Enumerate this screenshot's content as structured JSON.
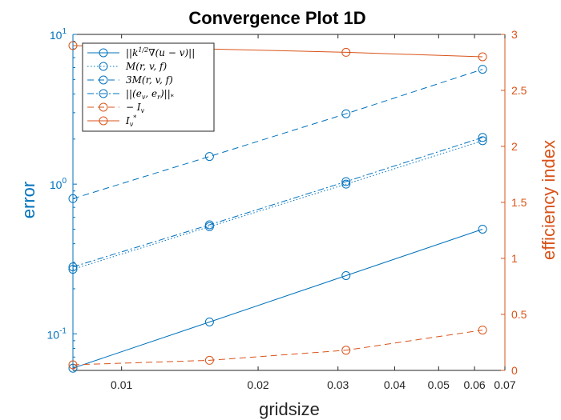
{
  "chart_data": {
    "type": "line",
    "title": "Convergence Plot 1D",
    "xlabel": "gridsize",
    "ylabel_left": "error",
    "ylabel_right": "efficiency index",
    "xscale": "log",
    "yscale_left": "log",
    "yscale_right": "linear",
    "xlim": [
      0.0078125,
      0.07
    ],
    "ylim_left": [
      0.057,
      10
    ],
    "ylim_right": [
      0,
      3
    ],
    "x": [
      0.0078125,
      0.015625,
      0.03125,
      0.0625
    ],
    "xticks": [
      {
        "value": 0.01,
        "label": "0.01"
      },
      {
        "value": 0.02,
        "label": "0.02"
      },
      {
        "value": 0.03,
        "label": "0.03"
      },
      {
        "value": 0.04,
        "label": "0.04"
      },
      {
        "value": 0.05,
        "label": "0.05"
      },
      {
        "value": 0.06,
        "label": "0.06"
      },
      {
        "value": 0.07,
        "label": "0.07"
      }
    ],
    "yticks_left": [
      {
        "value": 0.1,
        "base": "10",
        "exp": "-1"
      },
      {
        "value": 1,
        "base": "10",
        "exp": "0"
      },
      {
        "value": 10,
        "base": "10",
        "exp": "1"
      }
    ],
    "yticks_right": [
      {
        "value": 0,
        "label": "0"
      },
      {
        "value": 0.5,
        "label": "0.5"
      },
      {
        "value": 1,
        "label": "1"
      },
      {
        "value": 1.5,
        "label": "1.5"
      },
      {
        "value": 2,
        "label": "2"
      },
      {
        "value": 2.5,
        "label": "2.5"
      },
      {
        "value": 3,
        "label": "3"
      }
    ],
    "series": [
      {
        "name": "||k^{1/2}∇(u − v)||",
        "axis": "left",
        "style": "solid",
        "color": "#0072BD",
        "values": [
          0.059,
          0.12,
          0.245,
          0.5
        ]
      },
      {
        "name": "M(r, v, f)",
        "axis": "left",
        "style": "dotted",
        "color": "#0072BD",
        "values": [
          0.27,
          0.52,
          1.0,
          1.95
        ]
      },
      {
        "name": "3M(r, v, f)",
        "axis": "left",
        "style": "dashed",
        "color": "#0072BD",
        "values": [
          0.8,
          1.53,
          2.95,
          5.85
        ]
      },
      {
        "name": "||(e_v, e_r)||_*",
        "axis": "left",
        "style": "dashdot",
        "color": "#0072BD",
        "values": [
          0.28,
          0.535,
          1.04,
          2.05
        ]
      },
      {
        "name": "I_v",
        "axis": "right",
        "style": "dashed",
        "color": "#D95319",
        "values": [
          0.05,
          0.09,
          0.18,
          0.36
        ]
      },
      {
        "name": "I_v^*",
        "axis": "right",
        "style": "solid",
        "color": "#D95319",
        "values": [
          2.9,
          2.87,
          2.84,
          2.8
        ]
      }
    ],
    "legend": "top-left",
    "grid": false,
    "colors": {
      "left_axis": "#0072BD",
      "right_axis": "#D95319",
      "frame": "#262626"
    }
  }
}
